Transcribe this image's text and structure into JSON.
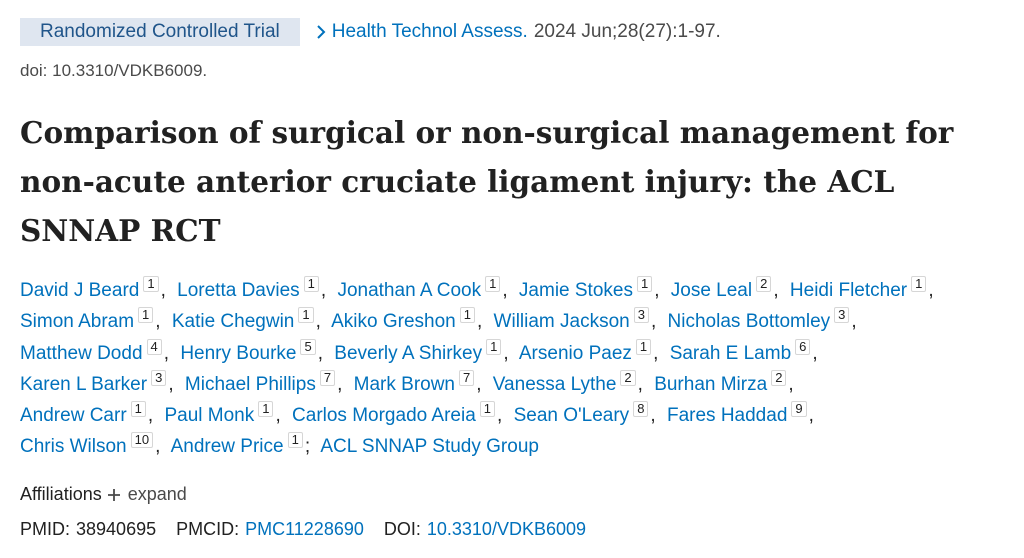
{
  "badge": "Randomized Controlled Trial",
  "journal": "Health Technol Assess.",
  "citation": "2024 Jun;28(27):1-97.",
  "doi_line": "doi: 10.3310/VDKB6009.",
  "title": "Comparison of surgical or non-surgical management for non-acute anterior cruciate ligament injury: the ACL SNNAP RCT",
  "authors": [
    {
      "name": "David J Beard",
      "affiliation": 1
    },
    {
      "name": "Loretta Davies",
      "affiliation": 1
    },
    {
      "name": "Jonathan A Cook",
      "affiliation": 1
    },
    {
      "name": "Jamie Stokes",
      "affiliation": 1
    },
    {
      "name": "Jose Leal",
      "affiliation": 2
    },
    {
      "name": "Heidi Fletcher",
      "affiliation": 1
    },
    {
      "name": "Simon Abram",
      "affiliation": 1
    },
    {
      "name": "Katie Chegwin",
      "affiliation": 1
    },
    {
      "name": "Akiko Greshon",
      "affiliation": 1
    },
    {
      "name": "William Jackson",
      "affiliation": 3
    },
    {
      "name": "Nicholas Bottomley",
      "affiliation": 3
    },
    {
      "name": "Matthew Dodd",
      "affiliation": 4
    },
    {
      "name": "Henry Bourke",
      "affiliation": 5
    },
    {
      "name": "Beverly A Shirkey",
      "affiliation": 1
    },
    {
      "name": "Arsenio Paez",
      "affiliation": 1
    },
    {
      "name": "Sarah E Lamb",
      "affiliation": 6
    },
    {
      "name": "Karen L Barker",
      "affiliation": 3
    },
    {
      "name": "Michael Phillips",
      "affiliation": 7
    },
    {
      "name": "Mark Brown",
      "affiliation": 7
    },
    {
      "name": "Vanessa Lythe",
      "affiliation": 2
    },
    {
      "name": "Burhan Mirza",
      "affiliation": 2
    },
    {
      "name": "Andrew Carr",
      "affiliation": 1
    },
    {
      "name": "Paul Monk",
      "affiliation": 1
    },
    {
      "name": "Carlos Morgado Areia",
      "affiliation": 1
    },
    {
      "name": "Sean O'Leary",
      "affiliation": 8
    },
    {
      "name": "Fares Haddad",
      "affiliation": 9
    },
    {
      "name": "Chris Wilson",
      "affiliation": 10
    },
    {
      "name": "Andrew Price",
      "affiliation": 1
    }
  ],
  "author_separator": ",",
  "group_separator": ";",
  "group": "ACL SNNAP Study Group",
  "affiliations": {
    "label": "Affiliations",
    "toggle": "expand"
  },
  "identifiers": [
    {
      "label": "PMID:",
      "value": "38940695"
    },
    {
      "label": "PMCID:",
      "value": "PMC11228690"
    },
    {
      "label": "DOI:",
      "value": "10.3310/VDKB6009"
    }
  ]
}
